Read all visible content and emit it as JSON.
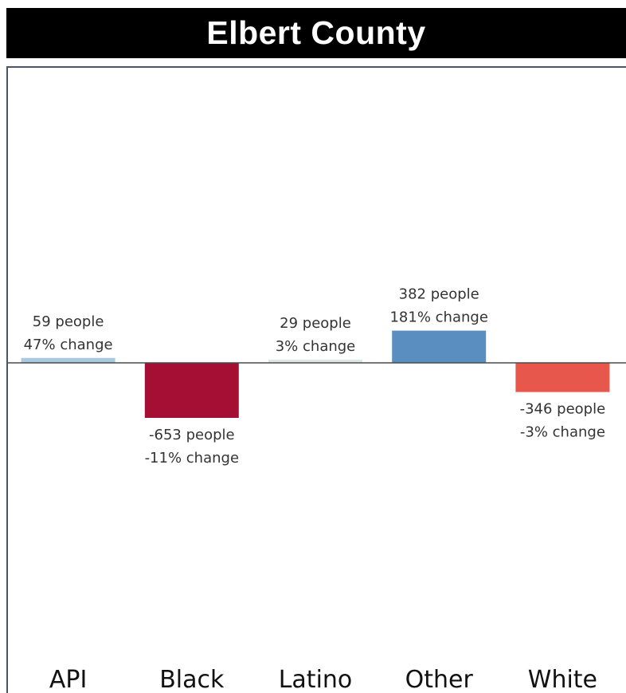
{
  "chart_data": {
    "type": "bar",
    "title": "Elbert County",
    "categories": [
      "API",
      "Black",
      "Latino",
      "Other",
      "White"
    ],
    "values": [
      59,
      -653,
      29,
      382,
      -346
    ],
    "percent_change_labels": [
      "47% change",
      "-11% change",
      "3% change",
      "181% change",
      "-3% change"
    ],
    "people_labels": [
      "59 people",
      "-653 people",
      "29 people",
      "382 people",
      "-346 people"
    ],
    "colors": [
      "#a9cbe0",
      "#a50f33",
      "#dde8e4",
      "#5b8ec0",
      "#e8574b"
    ],
    "ylim": [
      -3500,
      3500
    ],
    "grid": false,
    "xlabel": "",
    "ylabel": ""
  }
}
